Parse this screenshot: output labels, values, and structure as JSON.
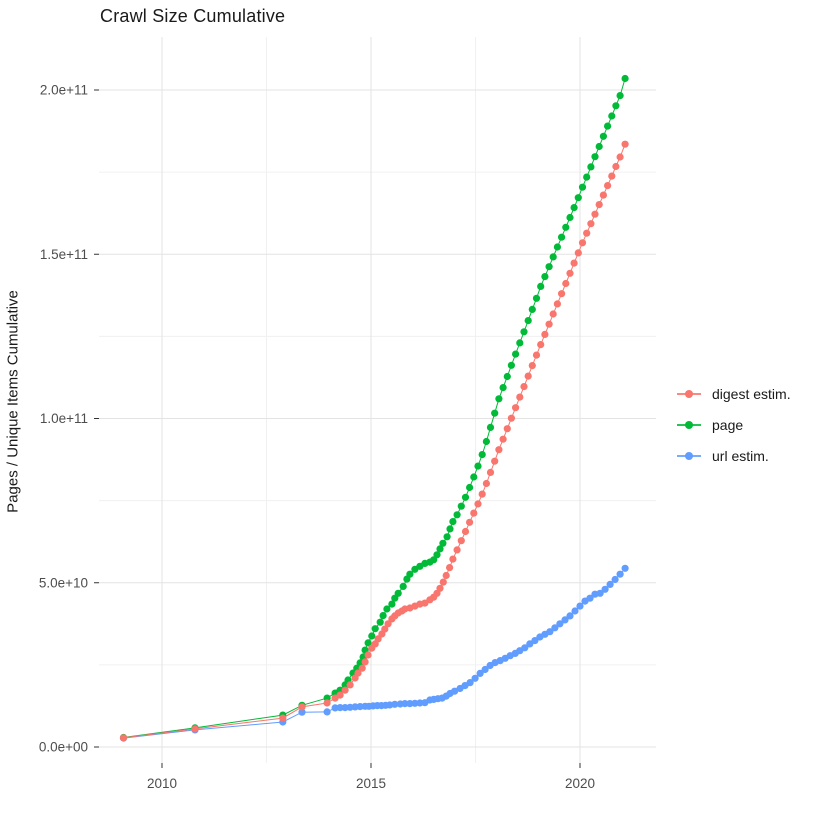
{
  "chart_data": {
    "type": "scatter",
    "title": "Crawl Size Cumulative",
    "xlabel": "",
    "ylabel": "Pages / Unique Items Cumulative",
    "grid": true,
    "legend_position": "right",
    "x_domain": [
      2008.5,
      2021.8
    ],
    "y_domain_e9": [
      -5,
      216
    ],
    "x_ticks": [
      2010,
      2015,
      2020
    ],
    "x_minor_ticks": [
      2012.5,
      2017.5
    ],
    "y_ticks": [
      {
        "value_e9": 0,
        "label": "0.0e+00"
      },
      {
        "value_e9": 50,
        "label": "5.0e+10"
      },
      {
        "value_e9": 100,
        "label": "1.0e+11"
      },
      {
        "value_e9": 150,
        "label": "1.5e+11"
      },
      {
        "value_e9": 200,
        "label": "2.0e+11"
      }
    ],
    "y_minor_ticks_e9": [
      25,
      75,
      125,
      175
    ],
    "value_unit": "points are [year, cumulative count in billions (1e9)]",
    "series": [
      {
        "name": "digest estim.",
        "color": "#F8766D",
        "points": [
          [
            2009.08,
            2.8
          ],
          [
            2010.79,
            5.5
          ],
          [
            2012.89,
            8.8
          ],
          [
            2013.35,
            12.2
          ],
          [
            2013.95,
            13.4
          ],
          [
            2014.14,
            14.9
          ],
          [
            2014.26,
            15.8
          ],
          [
            2014.38,
            17.3
          ],
          [
            2014.5,
            18.9
          ],
          [
            2014.62,
            21.0
          ],
          [
            2014.69,
            22.5
          ],
          [
            2014.79,
            24.0
          ],
          [
            2014.86,
            25.9
          ],
          [
            2014.93,
            28.0
          ],
          [
            2015.02,
            30.1
          ],
          [
            2015.1,
            31.4
          ],
          [
            2015.17,
            32.9
          ],
          [
            2015.26,
            34.4
          ],
          [
            2015.33,
            35.9
          ],
          [
            2015.41,
            37.5
          ],
          [
            2015.5,
            39.0
          ],
          [
            2015.57,
            39.9
          ],
          [
            2015.65,
            40.8
          ],
          [
            2015.74,
            41.4
          ],
          [
            2015.81,
            42.0
          ],
          [
            2015.93,
            42.3
          ],
          [
            2016.05,
            42.9
          ],
          [
            2016.17,
            43.5
          ],
          [
            2016.29,
            43.8
          ],
          [
            2016.41,
            44.8
          ],
          [
            2016.5,
            45.6
          ],
          [
            2016.58,
            46.8
          ],
          [
            2016.65,
            48.3
          ],
          [
            2016.73,
            50.2
          ],
          [
            2016.8,
            52.2
          ],
          [
            2016.88,
            54.6
          ],
          [
            2016.96,
            57.2
          ],
          [
            2017.06,
            60.0
          ],
          [
            2017.16,
            62.8
          ],
          [
            2017.26,
            65.6
          ],
          [
            2017.36,
            68.4
          ],
          [
            2017.46,
            71.2
          ],
          [
            2017.56,
            74.0
          ],
          [
            2017.66,
            77.0
          ],
          [
            2017.76,
            80.2
          ],
          [
            2017.86,
            83.6
          ],
          [
            2017.96,
            87.0
          ],
          [
            2018.06,
            90.5
          ],
          [
            2018.16,
            93.7
          ],
          [
            2018.26,
            96.9
          ],
          [
            2018.36,
            100.1
          ],
          [
            2018.46,
            103.3
          ],
          [
            2018.56,
            106.5
          ],
          [
            2018.66,
            109.7
          ],
          [
            2018.76,
            112.9
          ],
          [
            2018.86,
            116.1
          ],
          [
            2018.96,
            119.3
          ],
          [
            2019.06,
            122.5
          ],
          [
            2019.16,
            125.6
          ],
          [
            2019.26,
            128.7
          ],
          [
            2019.36,
            131.8
          ],
          [
            2019.46,
            134.9
          ],
          [
            2019.56,
            138.0
          ],
          [
            2019.66,
            141.1
          ],
          [
            2019.76,
            144.2
          ],
          [
            2019.86,
            147.3
          ],
          [
            2019.96,
            150.4
          ],
          [
            2020.06,
            153.5
          ],
          [
            2020.16,
            156.4
          ],
          [
            2020.26,
            159.3
          ],
          [
            2020.36,
            162.2
          ],
          [
            2020.46,
            165.1
          ],
          [
            2020.56,
            168.0
          ],
          [
            2020.66,
            170.9
          ],
          [
            2020.76,
            173.8
          ],
          [
            2020.86,
            176.7
          ],
          [
            2020.96,
            179.6
          ],
          [
            2021.08,
            183.5
          ]
        ]
      },
      {
        "name": "page",
        "color": "#00BA38",
        "points": [
          [
            2009.08,
            2.9
          ],
          [
            2010.79,
            5.8
          ],
          [
            2012.89,
            9.7
          ],
          [
            2013.35,
            12.7
          ],
          [
            2013.95,
            14.9
          ],
          [
            2014.14,
            16.4
          ],
          [
            2014.26,
            17.3
          ],
          [
            2014.38,
            18.9
          ],
          [
            2014.45,
            20.4
          ],
          [
            2014.57,
            22.5
          ],
          [
            2014.66,
            24.0
          ],
          [
            2014.74,
            25.6
          ],
          [
            2014.81,
            27.4
          ],
          [
            2014.86,
            29.5
          ],
          [
            2014.93,
            31.7
          ],
          [
            2015.02,
            33.8
          ],
          [
            2015.1,
            36.0
          ],
          [
            2015.22,
            38.0
          ],
          [
            2015.29,
            40.0
          ],
          [
            2015.38,
            42.0
          ],
          [
            2015.5,
            43.5
          ],
          [
            2015.57,
            45.3
          ],
          [
            2015.65,
            46.8
          ],
          [
            2015.77,
            48.9
          ],
          [
            2015.86,
            51.1
          ],
          [
            2015.93,
            52.6
          ],
          [
            2016.05,
            54.1
          ],
          [
            2016.17,
            55.0
          ],
          [
            2016.29,
            55.9
          ],
          [
            2016.41,
            56.3
          ],
          [
            2016.5,
            57.0
          ],
          [
            2016.58,
            58.5
          ],
          [
            2016.65,
            60.3
          ],
          [
            2016.72,
            62.0
          ],
          [
            2016.82,
            64.0
          ],
          [
            2016.89,
            66.4
          ],
          [
            2016.96,
            68.6
          ],
          [
            2017.06,
            70.7
          ],
          [
            2017.16,
            73.3
          ],
          [
            2017.26,
            76.0
          ],
          [
            2017.36,
            79.0
          ],
          [
            2017.46,
            82.2
          ],
          [
            2017.56,
            85.5
          ],
          [
            2017.66,
            89.0
          ],
          [
            2017.76,
            93.0
          ],
          [
            2017.86,
            97.3
          ],
          [
            2017.96,
            101.6
          ],
          [
            2018.06,
            106.0
          ],
          [
            2018.16,
            109.4
          ],
          [
            2018.26,
            112.8
          ],
          [
            2018.36,
            116.2
          ],
          [
            2018.46,
            119.6
          ],
          [
            2018.56,
            123.0
          ],
          [
            2018.66,
            126.4
          ],
          [
            2018.76,
            129.8
          ],
          [
            2018.86,
            133.2
          ],
          [
            2018.96,
            136.6
          ],
          [
            2019.06,
            140.2
          ],
          [
            2019.16,
            143.2
          ],
          [
            2019.26,
            146.2
          ],
          [
            2019.36,
            149.2
          ],
          [
            2019.46,
            152.2
          ],
          [
            2019.56,
            155.2
          ],
          [
            2019.66,
            158.2
          ],
          [
            2019.76,
            161.2
          ],
          [
            2019.86,
            164.2
          ],
          [
            2019.96,
            167.2
          ],
          [
            2020.06,
            170.4
          ],
          [
            2020.16,
            173.5
          ],
          [
            2020.26,
            176.6
          ],
          [
            2020.36,
            179.7
          ],
          [
            2020.46,
            182.8
          ],
          [
            2020.56,
            185.9
          ],
          [
            2020.66,
            189.0
          ],
          [
            2020.76,
            192.1
          ],
          [
            2020.86,
            195.2
          ],
          [
            2020.96,
            198.3
          ],
          [
            2021.08,
            203.5
          ]
        ]
      },
      {
        "name": "url estim.",
        "color": "#619CFF",
        "points": [
          [
            2009.08,
            2.7
          ],
          [
            2010.79,
            5.2
          ],
          [
            2012.89,
            7.6
          ],
          [
            2013.35,
            10.6
          ],
          [
            2013.95,
            10.7
          ],
          [
            2014.14,
            11.9
          ],
          [
            2014.26,
            12.0
          ],
          [
            2014.38,
            12.0
          ],
          [
            2014.5,
            12.1
          ],
          [
            2014.62,
            12.2
          ],
          [
            2014.74,
            12.3
          ],
          [
            2014.86,
            12.4
          ],
          [
            2014.95,
            12.4
          ],
          [
            2015.05,
            12.5
          ],
          [
            2015.15,
            12.6
          ],
          [
            2015.25,
            12.6
          ],
          [
            2015.35,
            12.7
          ],
          [
            2015.45,
            12.8
          ],
          [
            2015.57,
            13.0
          ],
          [
            2015.7,
            13.1
          ],
          [
            2015.81,
            13.2
          ],
          [
            2015.93,
            13.2
          ],
          [
            2016.05,
            13.3
          ],
          [
            2016.17,
            13.4
          ],
          [
            2016.29,
            13.5
          ],
          [
            2016.41,
            14.3
          ],
          [
            2016.5,
            14.5
          ],
          [
            2016.6,
            14.7
          ],
          [
            2016.7,
            14.9
          ],
          [
            2016.8,
            15.5
          ],
          [
            2016.89,
            16.3
          ],
          [
            2017.0,
            17.0
          ],
          [
            2017.13,
            17.8
          ],
          [
            2017.25,
            18.7
          ],
          [
            2017.37,
            19.6
          ],
          [
            2017.49,
            20.9
          ],
          [
            2017.61,
            22.4
          ],
          [
            2017.73,
            23.6
          ],
          [
            2017.85,
            24.8
          ],
          [
            2017.97,
            25.7
          ],
          [
            2018.09,
            26.3
          ],
          [
            2018.21,
            27.0
          ],
          [
            2018.33,
            27.8
          ],
          [
            2018.45,
            28.5
          ],
          [
            2018.56,
            29.3
          ],
          [
            2018.68,
            30.2
          ],
          [
            2018.8,
            31.4
          ],
          [
            2018.92,
            32.4
          ],
          [
            2019.04,
            33.5
          ],
          [
            2019.16,
            34.3
          ],
          [
            2019.28,
            35.1
          ],
          [
            2019.4,
            36.3
          ],
          [
            2019.52,
            37.5
          ],
          [
            2019.64,
            38.7
          ],
          [
            2019.76,
            39.9
          ],
          [
            2019.88,
            41.4
          ],
          [
            2020.0,
            42.9
          ],
          [
            2020.12,
            44.4
          ],
          [
            2020.24,
            45.3
          ],
          [
            2020.36,
            46.5
          ],
          [
            2020.48,
            46.8
          ],
          [
            2020.6,
            48.0
          ],
          [
            2020.72,
            49.5
          ],
          [
            2020.84,
            51.0
          ],
          [
            2020.96,
            52.6
          ],
          [
            2021.08,
            54.4
          ]
        ]
      }
    ]
  },
  "legend": {
    "items": [
      {
        "label": "digest estim.",
        "color": "#F8766D"
      },
      {
        "label": "page",
        "color": "#00BA38"
      },
      {
        "label": "url estim.",
        "color": "#619CFF"
      }
    ]
  },
  "colors": {
    "grid_major": "#e3e3e3",
    "grid_minor": "#f0f0f0",
    "tick_mark": "#333333",
    "tick_label": "#4d4d4d",
    "text": "#1a1a1a",
    "background": "#ffffff"
  }
}
